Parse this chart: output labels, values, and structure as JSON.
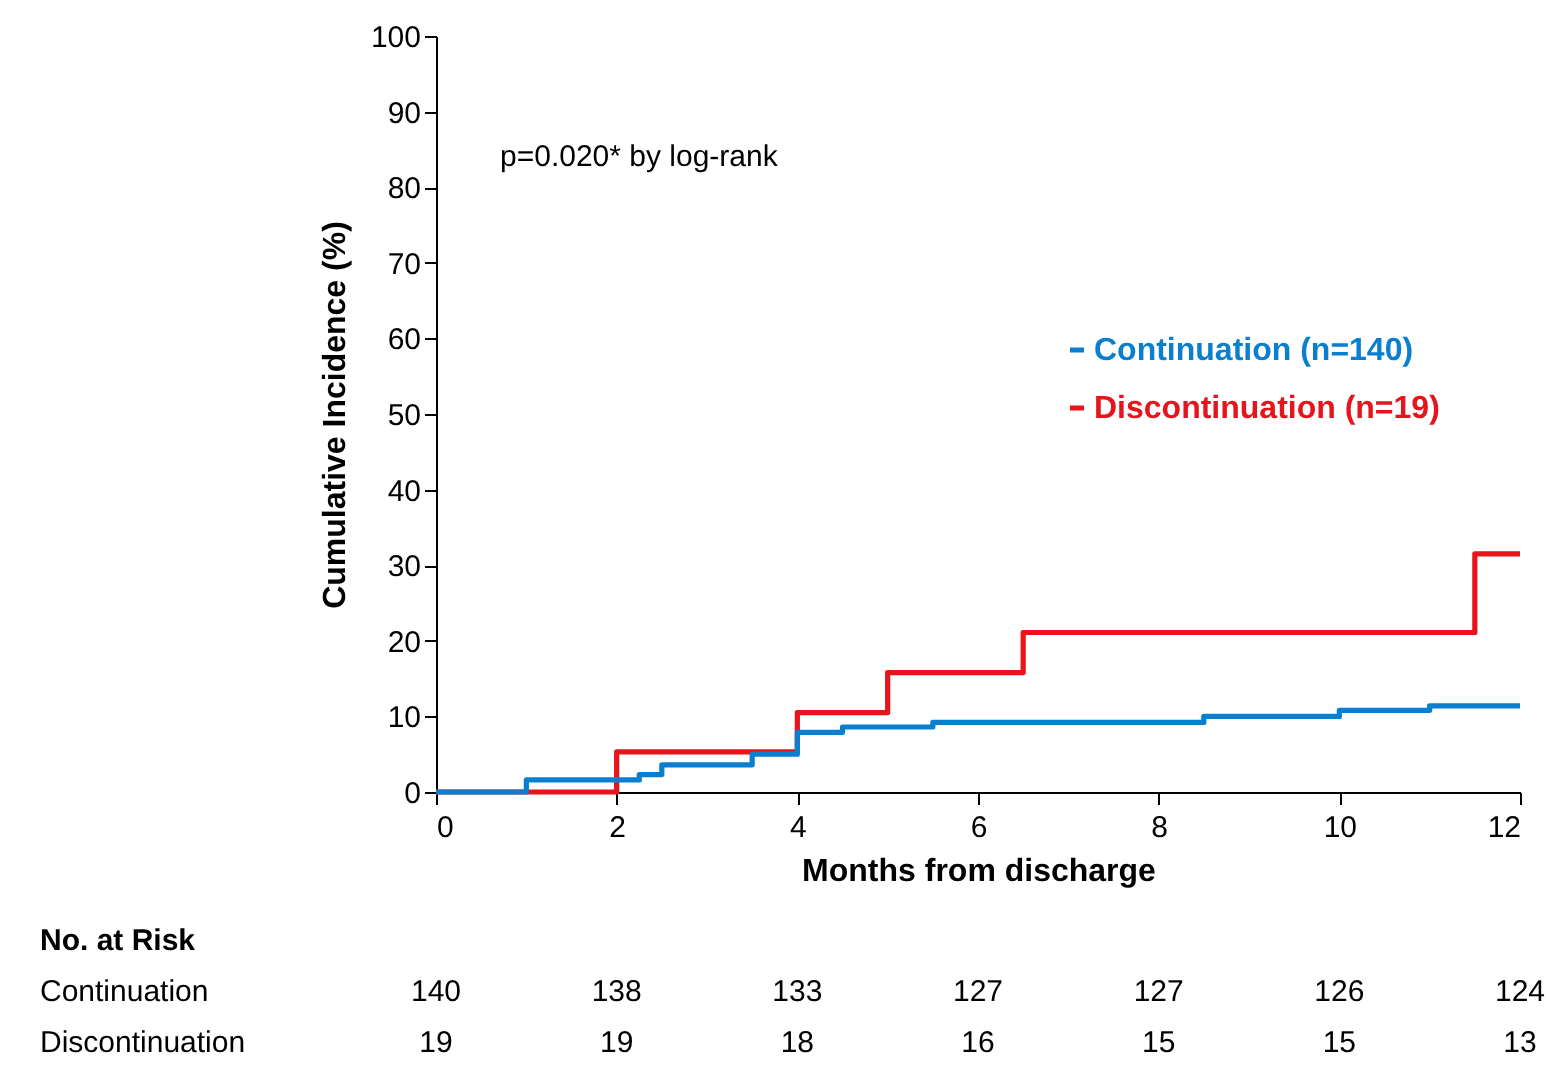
{
  "chart_data": {
    "type": "step",
    "xlabel": "Months from discharge",
    "ylabel": "Cumulative Incidence (%)",
    "xlim": [
      0,
      12
    ],
    "xticks": [
      0,
      2,
      4,
      6,
      8,
      10,
      12
    ],
    "ylim": [
      0,
      100
    ],
    "yticks": [
      0,
      10,
      20,
      30,
      40,
      50,
      60,
      70,
      80,
      90,
      100
    ],
    "grid": false,
    "legend": "right",
    "line_style": "solid",
    "marker": "none",
    "series": [
      {
        "name": "Discontinuation (n=19)",
        "color": "#e8141b",
        "x": [
          0,
          2,
          4,
          5,
          6.5,
          11.5,
          12
        ],
        "values": [
          0,
          5.3,
          10.5,
          15.8,
          21.1,
          31.5,
          31.5
        ]
      },
      {
        "name": "Continuation (n=140)",
        "color": "#0a7fd0",
        "x": [
          0,
          1,
          2.25,
          2.5,
          3.5,
          4,
          4.5,
          5.5,
          8.5,
          10,
          11,
          12
        ],
        "values": [
          0,
          1.6,
          2.3,
          3.6,
          5.0,
          7.9,
          8.6,
          9.2,
          10.0,
          10.8,
          11.4,
          11.4
        ]
      }
    ],
    "annotations": [
      "p=0.020* by log-rank",
      "No. at Risk",
      "Continuation",
      "140",
      "138",
      "133",
      "127",
      "127",
      "126",
      "124",
      "Discontinuation",
      "19",
      "19",
      "18",
      "16",
      "15",
      "15",
      "13"
    ]
  }
}
